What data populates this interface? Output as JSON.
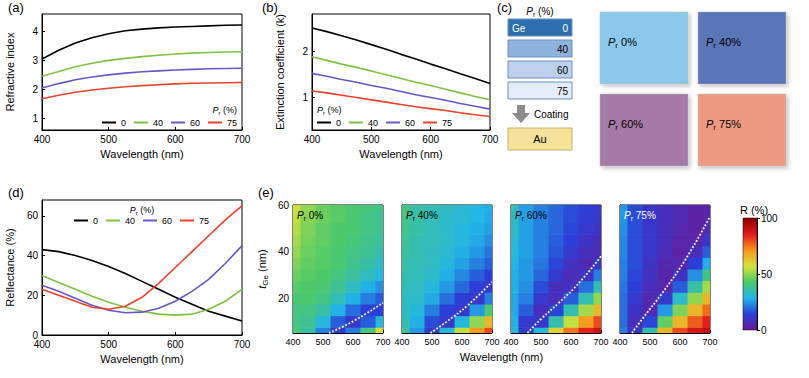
{
  "chart_data": [
    {
      "panel": "(a)",
      "type": "line",
      "x_label": "Wavelength (nm)",
      "y_label": "Refractive index",
      "x": [
        400,
        425,
        450,
        475,
        500,
        525,
        550,
        575,
        600,
        625,
        650,
        675,
        700
      ],
      "series": [
        {
          "name": "0",
          "color": "#000000",
          "values": [
            3.05,
            3.35,
            3.6,
            3.78,
            3.92,
            4.02,
            4.08,
            4.12,
            4.15,
            4.17,
            4.19,
            4.21,
            4.22
          ]
        },
        {
          "name": "40",
          "color": "#7dc242",
          "values": [
            2.45,
            2.62,
            2.78,
            2.9,
            3.0,
            3.07,
            3.13,
            3.18,
            3.22,
            3.25,
            3.27,
            3.29,
            3.3
          ]
        },
        {
          "name": "60",
          "color": "#6a55c8",
          "values": [
            2.05,
            2.2,
            2.33,
            2.43,
            2.5,
            2.56,
            2.61,
            2.64,
            2.67,
            2.69,
            2.71,
            2.72,
            2.73
          ]
        },
        {
          "name": "75",
          "color": "#e8412c",
          "values": [
            1.68,
            1.8,
            1.9,
            1.98,
            2.04,
            2.09,
            2.13,
            2.16,
            2.19,
            2.21,
            2.22,
            2.23,
            2.24
          ]
        }
      ],
      "xlim": [
        400,
        700
      ],
      "xticks": [
        400,
        500,
        600,
        700
      ],
      "ylim": [
        0.6,
        4.6
      ],
      "yticks": [
        1,
        2,
        3,
        4
      ],
      "legend": "lower right",
      "legend_title": "Pr (%)",
      "grid": false
    },
    {
      "panel": "(b)",
      "type": "line",
      "x_label": "Wavelength (nm)",
      "y_label": "Extinction coefficient (k)",
      "x": [
        400,
        425,
        450,
        475,
        500,
        525,
        550,
        575,
        600,
        625,
        650,
        675,
        700
      ],
      "series": [
        {
          "name": "0",
          "color": "#000000",
          "values": [
            2.5,
            2.42,
            2.33,
            2.24,
            2.14,
            2.04,
            1.93,
            1.83,
            1.72,
            1.62,
            1.51,
            1.41,
            1.3
          ]
        },
        {
          "name": "40",
          "color": "#7dc242",
          "values": [
            1.88,
            1.8,
            1.72,
            1.65,
            1.57,
            1.49,
            1.41,
            1.33,
            1.26,
            1.18,
            1.1,
            1.02,
            0.95
          ]
        },
        {
          "name": "60",
          "color": "#6a55c8",
          "values": [
            1.52,
            1.46,
            1.39,
            1.33,
            1.26,
            1.2,
            1.13,
            1.06,
            1.0,
            0.94,
            0.87,
            0.81,
            0.75
          ]
        },
        {
          "name": "75",
          "color": "#e8412c",
          "values": [
            1.14,
            1.1,
            1.05,
            1.0,
            0.95,
            0.9,
            0.85,
            0.8,
            0.76,
            0.72,
            0.67,
            0.63,
            0.59
          ]
        }
      ],
      "xlim": [
        400,
        700
      ],
      "xticks": [
        400,
        500,
        600,
        700
      ],
      "ylim": [
        0.3,
        2.8
      ],
      "yticks": [
        1,
        2
      ],
      "legend": "lower left",
      "legend_title": "Pr (%)",
      "grid": false
    },
    {
      "panel": "(d)",
      "type": "line",
      "x_label": "Wavelength (nm)",
      "y_label": "Reflectance (%)",
      "x": [
        400,
        425,
        450,
        475,
        500,
        525,
        550,
        575,
        600,
        625,
        650,
        675,
        700
      ],
      "series": [
        {
          "name": "0",
          "color": "#000000",
          "values": [
            43,
            42,
            40,
            37.5,
            34.5,
            31,
            27,
            23,
            19,
            15.5,
            12,
            9.5,
            7
          ]
        },
        {
          "name": "40",
          "color": "#7dc242",
          "values": [
            30,
            26.5,
            23,
            19.5,
            16.5,
            14,
            12,
            10.5,
            10,
            10.5,
            13,
            17,
            23
          ]
        },
        {
          "name": "60",
          "color": "#6a55c8",
          "values": [
            25,
            22,
            18.5,
            15,
            12.5,
            11.2,
            11.5,
            13.5,
            17,
            22,
            28,
            36,
            45
          ]
        },
        {
          "name": "75",
          "color": "#e8412c",
          "values": [
            23,
            20,
            17,
            14,
            13,
            14.5,
            19,
            26,
            34,
            42,
            50,
            58,
            65
          ]
        }
      ],
      "xlim": [
        400,
        700
      ],
      "xticks": [
        400,
        500,
        600,
        700
      ],
      "ylim": [
        0,
        68
      ],
      "yticks": [
        0,
        20,
        40,
        60
      ],
      "legend": "upper center",
      "legend_title": "Pr (%)",
      "grid": false
    },
    {
      "panel": "(e)",
      "type": "heatmap",
      "x_label": "Wavelength (nm)",
      "y_label": "tGe (nm)",
      "xlim": [
        400,
        700
      ],
      "xticks": [
        400,
        500,
        600,
        700
      ],
      "ylim": [
        5,
        60
      ],
      "yticks": [
        20,
        40,
        60
      ],
      "colorbar": {
        "label": "R (%)",
        "range": [
          0,
          100
        ],
        "ticks": [
          0,
          50,
          100
        ]
      },
      "subplots": [
        {
          "title": "Pr 0%",
          "x": [
            400,
            450,
            500,
            550,
            600,
            650,
            700
          ],
          "y": [
            5,
            10,
            15,
            20,
            25,
            30,
            35,
            40,
            45,
            50,
            55,
            60
          ],
          "cells": [
            [
              42,
              36,
              22,
              12,
              22,
              40,
              58
            ],
            [
              40,
              38,
              30,
              18,
              12,
              18,
              30
            ],
            [
              40,
              40,
              36,
              28,
              20,
              14,
              14
            ],
            [
              42,
              42,
              40,
              34,
              28,
              22,
              18
            ],
            [
              44,
              43,
              42,
              38,
              33,
              28,
              24
            ],
            [
              46,
              44,
              43,
              40,
              37,
              33,
              29
            ],
            [
              48,
              45,
              44,
              42,
              39,
              36,
              32
            ],
            [
              50,
              46,
              44,
              42,
              40,
              38,
              35
            ],
            [
              52,
              47,
              45,
              43,
              41,
              39,
              37
            ],
            [
              54,
              48,
              45,
              43,
              42,
              40,
              38
            ],
            [
              55,
              49,
              46,
              44,
              42,
              40,
              38
            ],
            [
              56,
              50,
              46,
              44,
              42,
              41,
              39
            ]
          ],
          "minimum_line": {
            "x": [
              520,
              600,
              700
            ],
            "y": [
              5,
              10,
              18
            ],
            "color": "#ffffff",
            "line_style": "dotted"
          }
        },
        {
          "title": "Pr 40%",
          "x": [
            400,
            450,
            500,
            550,
            600,
            650,
            700
          ],
          "y": [
            5,
            10,
            15,
            20,
            25,
            30,
            35,
            40,
            45,
            50,
            55,
            60
          ],
          "cells": [
            [
              38,
              25,
              12,
              30,
              55,
              70,
              80
            ],
            [
              35,
              28,
              16,
              12,
              30,
              50,
              65
            ],
            [
              33,
              30,
              22,
              14,
              12,
              25,
              42
            ],
            [
              33,
              32,
              27,
              20,
              14,
              12,
              22
            ],
            [
              34,
              33,
              30,
              25,
              19,
              14,
              12
            ],
            [
              35,
              34,
              32,
              28,
              23,
              18,
              14
            ],
            [
              36,
              34,
              33,
              30,
              26,
              22,
              18
            ],
            [
              37,
              35,
              33,
              31,
              28,
              25,
              21
            ],
            [
              38,
              35,
              34,
              32,
              30,
              27,
              24
            ],
            [
              39,
              36,
              34,
              32,
              30,
              28,
              26
            ],
            [
              40,
              36,
              34,
              32,
              31,
              29,
              27
            ],
            [
              40,
              36,
              34,
              33,
              31,
              29,
              28
            ]
          ],
          "minimum_line": {
            "x": [
              495,
              550,
              620,
              700
            ],
            "y": [
              5,
              10,
              17,
              27
            ],
            "color": "#ffffff",
            "line_style": "dotted"
          }
        },
        {
          "title": "Pr 60%",
          "x": [
            400,
            450,
            500,
            550,
            600,
            650,
            700
          ],
          "y": [
            5,
            10,
            15,
            20,
            25,
            30,
            35,
            40,
            45,
            50,
            55,
            60
          ],
          "cells": [
            [
              30,
              12,
              30,
              60,
              75,
              85,
              90
            ],
            [
              28,
              12,
              12,
              35,
              55,
              70,
              80
            ],
            [
              27,
              18,
              8,
              15,
              35,
              52,
              65
            ],
            [
              27,
              22,
              12,
              8,
              18,
              35,
              50
            ],
            [
              28,
              24,
              16,
              8,
              9,
              20,
              35
            ],
            [
              28,
              25,
              19,
              12,
              7,
              10,
              22
            ],
            [
              29,
              25,
              21,
              15,
              9,
              6,
              12
            ],
            [
              30,
              26,
              22,
              17,
              12,
              8,
              7
            ],
            [
              31,
              26,
              22,
              18,
              14,
              10,
              8
            ],
            [
              32,
              26,
              22,
              19,
              15,
              12,
              10
            ],
            [
              33,
              26,
              22,
              19,
              16,
              13,
              11
            ],
            [
              34,
              26,
              22,
              19,
              16,
              14,
              12
            ]
          ],
          "minimum_line": {
            "x": [
              455,
              500,
              560,
              630,
              700
            ],
            "y": [
              5,
              11,
              18,
              27,
              38
            ],
            "color": "#ffffff",
            "line_style": "dotted"
          }
        },
        {
          "title": "Pr 75%",
          "x": [
            400,
            450,
            500,
            550,
            600,
            650,
            700
          ],
          "y": [
            5,
            10,
            15,
            20,
            25,
            30,
            35,
            40,
            45,
            50,
            55,
            60
          ],
          "cells": [
            [
              22,
              10,
              35,
              65,
              80,
              88,
              92
            ],
            [
              20,
              8,
              15,
              45,
              65,
              78,
              85
            ],
            [
              20,
              10,
              6,
              25,
              48,
              65,
              76
            ],
            [
              20,
              12,
              5,
              12,
              32,
              50,
              65
            ],
            [
              21,
              14,
              7,
              5,
              18,
              36,
              52
            ],
            [
              22,
              15,
              9,
              4,
              9,
              24,
              40
            ],
            [
              22,
              16,
              10,
              5,
              5,
              14,
              28
            ],
            [
              23,
              16,
              11,
              7,
              3,
              8,
              18
            ],
            [
              23,
              16,
              11,
              8,
              4,
              4,
              11
            ],
            [
              24,
              16,
              11,
              8,
              5,
              3,
              6
            ],
            [
              25,
              16,
              11,
              8,
              6,
              3,
              4
            ],
            [
              25,
              16,
              11,
              8,
              6,
              4,
              3
            ]
          ],
          "minimum_line": {
            "x": [
              440,
              480,
              540,
              620,
              700
            ],
            "y": [
              5,
              12,
              22,
              37,
              55
            ],
            "color": "#ffffff",
            "line_style": "dotted"
          }
        }
      ]
    }
  ],
  "diagram": {
    "panel": "(c)",
    "header": "Pr (%)",
    "layers": [
      {
        "material": "Ge",
        "value": 0,
        "color": "#2e6fae"
      },
      {
        "value": 40,
        "color": "#8fb2dc"
      },
      {
        "value": 60,
        "color": "#bcd2ec"
      },
      {
        "value": 75,
        "color": "#e3edf8"
      }
    ],
    "arrow_label": "Coating",
    "substrate": {
      "material": "Au",
      "color": "#f6e39a"
    },
    "samples": [
      {
        "label": "Pr 0%",
        "color": "#8cc8ec"
      },
      {
        "label": "Pr 40%",
        "color": "#5a74b8"
      },
      {
        "label": "Pr 60%",
        "color": "#a57aa6"
      },
      {
        "label": "Pr 75%",
        "color": "#ee9a82"
      }
    ]
  }
}
